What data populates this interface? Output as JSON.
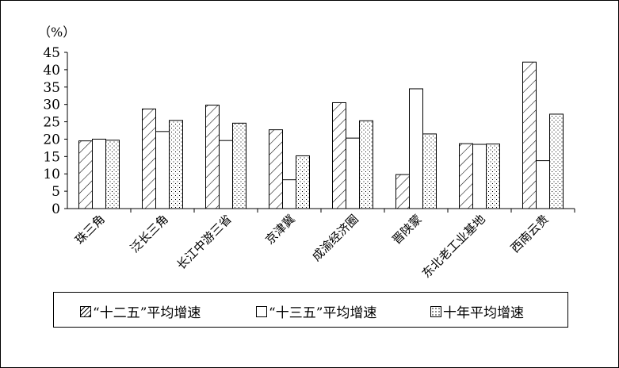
{
  "chart_data": {
    "type": "bar",
    "unit_label": "（%）",
    "categories": [
      "珠三角",
      "泛长三角",
      "长江中游三省",
      "京津冀",
      "成渝经济圈",
      "晋陕蒙",
      "东北老工业基地",
      "西南云贵"
    ],
    "series": [
      {
        "name": "“十二五”平均增速",
        "pattern": "hatch",
        "values": [
          19.5,
          28.7,
          29.8,
          22.7,
          30.5,
          9.8,
          18.7,
          42.2
        ]
      },
      {
        "name": "“十三五”平均增速",
        "pattern": "blank",
        "values": [
          20.0,
          22.2,
          19.6,
          8.3,
          20.3,
          34.5,
          18.5,
          13.8
        ]
      },
      {
        "name": "十年平均增速",
        "pattern": "dots",
        "values": [
          19.7,
          25.4,
          24.6,
          15.2,
          25.3,
          21.5,
          18.6,
          27.2
        ]
      }
    ],
    "yticks": [
      0,
      5,
      10,
      15,
      20,
      25,
      30,
      35,
      40,
      45
    ],
    "ylim": [
      0,
      45
    ],
    "grid": false,
    "legend_position": "bottom"
  }
}
